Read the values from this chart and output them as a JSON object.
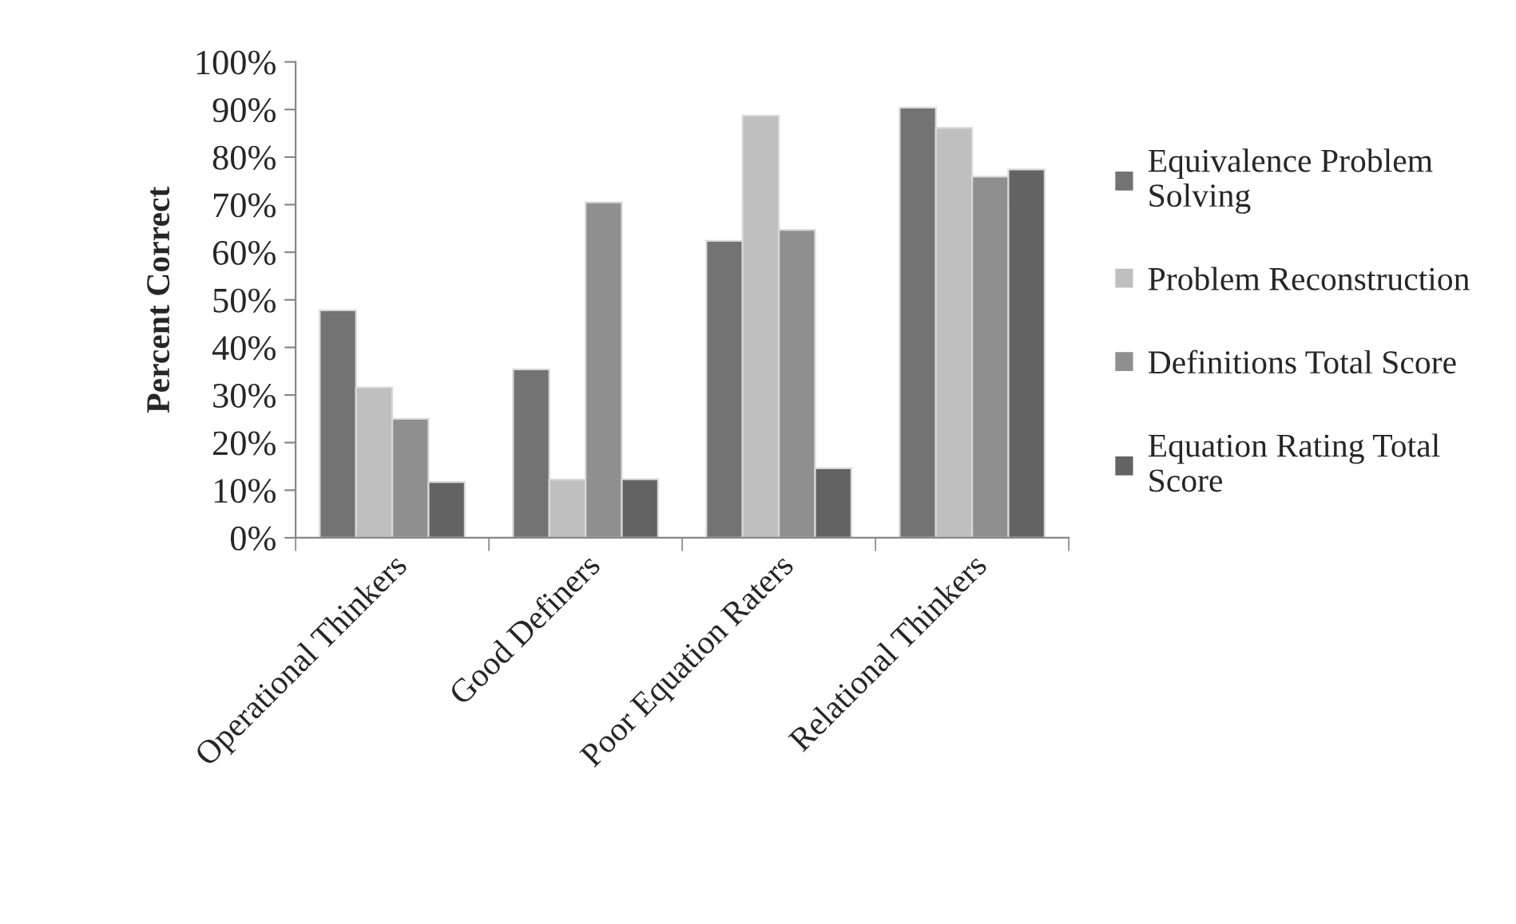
{
  "chart_data": {
    "type": "bar",
    "ylabel": "Percent Correct",
    "categories": [
      "Operational Thinkers",
      "Good Definers",
      "Poor Equation Raters",
      "Relational Thinkers"
    ],
    "series": [
      {
        "name": "Equivalence Problem Solving",
        "color": "#737373",
        "values": [
          47.8,
          35.4,
          62.4,
          90.4
        ]
      },
      {
        "name": "Problem Reconstruction",
        "color": "#bfbfbf",
        "values": [
          31.6,
          12.2,
          88.7,
          86.1
        ]
      },
      {
        "name": "Definitions Total Score",
        "color": "#8f8f8f",
        "values": [
          25.0,
          70.5,
          64.7,
          75.9
        ]
      },
      {
        "name": "Equation Rating Total Score",
        "color": "#636363",
        "values": [
          11.7,
          12.3,
          14.6,
          77.4
        ]
      }
    ],
    "ylim": [
      0,
      100
    ],
    "yticks": [
      {
        "value": 0,
        "label": "0%"
      },
      {
        "value": 10,
        "label": "10%"
      },
      {
        "value": 20,
        "label": "20%"
      },
      {
        "value": 30,
        "label": "30%"
      },
      {
        "value": 40,
        "label": "40%"
      },
      {
        "value": 50,
        "label": "50%"
      },
      {
        "value": 60,
        "label": "60%"
      },
      {
        "value": 70,
        "label": "70%"
      },
      {
        "value": 80,
        "label": "80%"
      },
      {
        "value": 90,
        "label": "90%"
      },
      {
        "value": 100,
        "label": "100%"
      }
    ],
    "grid": false,
    "legend": "right"
  }
}
